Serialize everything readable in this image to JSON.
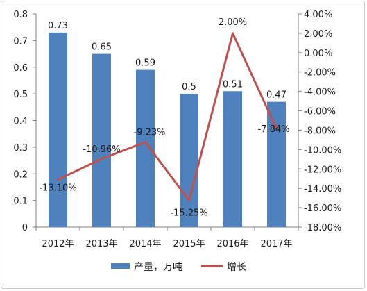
{
  "chart_data": {
    "type": "bar+line",
    "categories": [
      "2012年",
      "2013年",
      "2014年",
      "2015年",
      "2016年",
      "2017年"
    ],
    "series": [
      {
        "name": "产量，万吨",
        "type": "bar",
        "axis": "left",
        "values": [
          0.73,
          0.65,
          0.59,
          0.5,
          0.51,
          0.47
        ],
        "labels": [
          "0.73",
          "0.65",
          "0.59",
          "0.5",
          "0.51",
          "0.47"
        ],
        "color": "#4f81bd"
      },
      {
        "name": "增长",
        "type": "line",
        "axis": "right",
        "values": [
          -13.1,
          -10.96,
          -9.23,
          -15.25,
          2.0,
          -7.84
        ],
        "labels": [
          "-13.10%",
          "-10.96%",
          "-9.23%",
          "-15.25%",
          "2.00%",
          "-7.84%"
        ],
        "color": "#c0504d"
      }
    ],
    "y_left": {
      "ylim": [
        0,
        0.8
      ],
      "ticks": [
        "0",
        "0.1",
        "0.2",
        "0.3",
        "0.4",
        "0.5",
        "0.6",
        "0.7",
        "0.8"
      ]
    },
    "y_right": {
      "ylim": [
        -18,
        4
      ],
      "ticks": [
        "-18.00%",
        "-16.00%",
        "-14.00%",
        "-12.00%",
        "-10.00%",
        "-8.00%",
        "-6.00%",
        "-4.00%",
        "-2.00%",
        "0.00%",
        "2.00%",
        "4.00%"
      ]
    },
    "grid": false,
    "legend": "bottom"
  }
}
